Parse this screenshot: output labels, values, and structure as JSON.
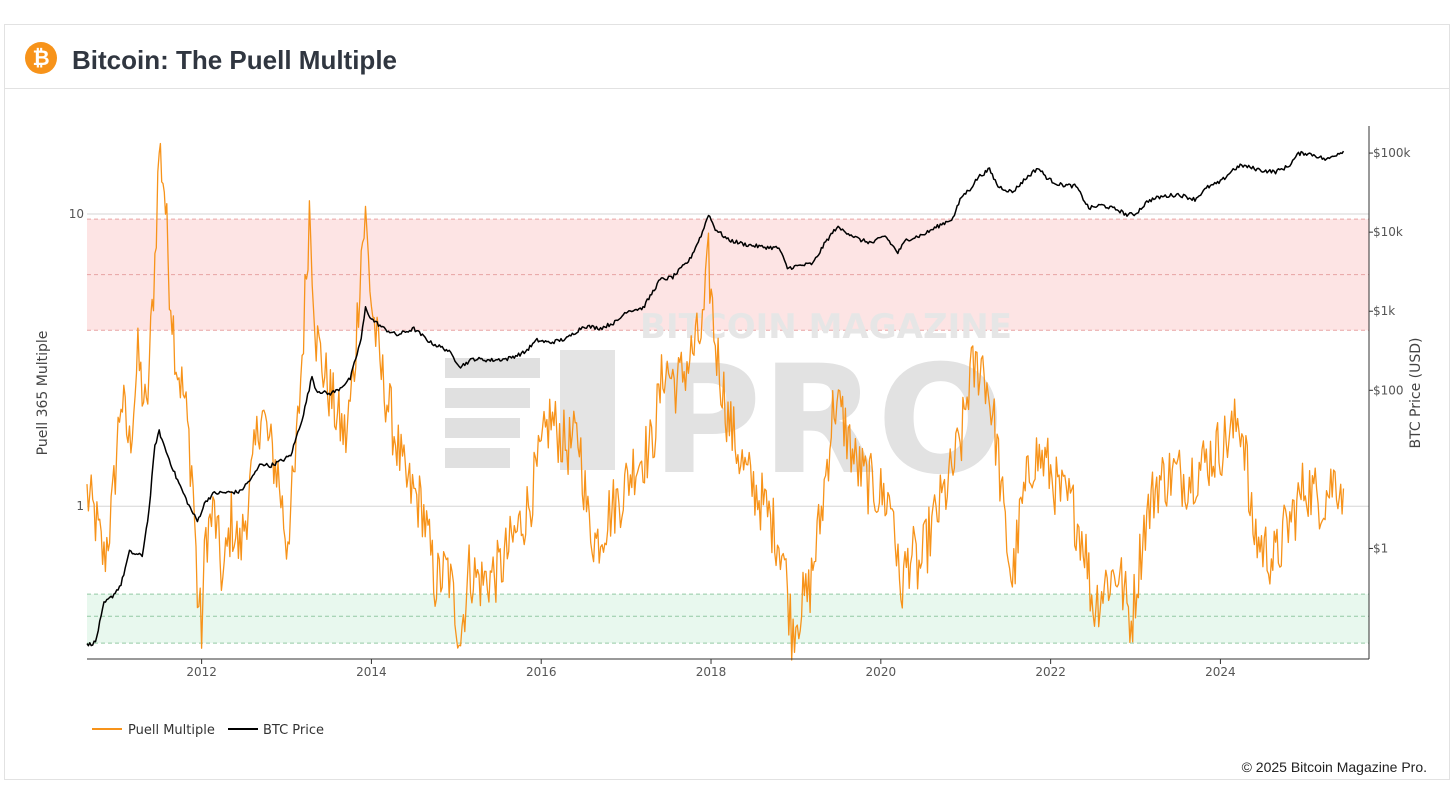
{
  "header": {
    "title": "Bitcoin: The Puell Multiple",
    "logo_icon": "bitcoin-logo-icon",
    "logo_glyph": "₿"
  },
  "watermark": {
    "line1": "BITCOIN MAGAZINE",
    "line2": "PRO"
  },
  "footer": {
    "copyright": "© 2025 Bitcoin Magazine Pro."
  },
  "chart_data": {
    "type": "line",
    "y_left": {
      "label": "Puell 365 Multiple",
      "scale": "log",
      "range": [
        0.3,
        20
      ],
      "ticks": [
        {
          "v": 1,
          "label": "1"
        },
        {
          "v": 10,
          "label": "10"
        }
      ]
    },
    "y_right": {
      "label": "BTC Price (USD)",
      "scale": "log",
      "range": [
        0.04,
        220000
      ],
      "ticks": [
        {
          "v": 1,
          "label": "$1"
        },
        {
          "v": 100,
          "label": "$100"
        },
        {
          "v": 1000,
          "label": "$1k"
        },
        {
          "v": 10000,
          "label": "$10k"
        },
        {
          "v": 100000,
          "label": "$100k"
        }
      ]
    },
    "x_axis": {
      "range": [
        2010.65,
        2025.75
      ],
      "ticks": [
        2012,
        2014,
        2016,
        2018,
        2020,
        2022,
        2024
      ]
    },
    "bands": [
      {
        "name": "overvalued",
        "from": 4,
        "to": 9.6,
        "color": "#fde4e4",
        "line_color": "#e8a3a3",
        "mid": 6.2
      },
      {
        "name": "undervalued",
        "from": 0.34,
        "to": 0.5,
        "color": "#e8f8ee",
        "line_color": "#93c9a4",
        "mid": 0.42
      }
    ],
    "grid": true,
    "legend_position": "bottom-left",
    "series": [
      {
        "name": "Puell Multiple",
        "axis": "left",
        "color": "#f7931a",
        "points": [
          [
            2010.65,
            1.1
          ],
          [
            2010.75,
            0.9
          ],
          [
            2010.85,
            0.65
          ],
          [
            2010.95,
            1.0
          ],
          [
            2011.05,
            2.4
          ],
          [
            2011.15,
            1.6
          ],
          [
            2011.25,
            3.2
          ],
          [
            2011.35,
            2.0
          ],
          [
            2011.45,
            7.0
          ],
          [
            2011.5,
            17
          ],
          [
            2011.56,
            12.5
          ],
          [
            2011.62,
            6
          ],
          [
            2011.7,
            3.2
          ],
          [
            2011.8,
            2.3
          ],
          [
            2011.9,
            1.2
          ],
          [
            2011.95,
            0.5
          ],
          [
            2012.0,
            0.38
          ],
          [
            2012.05,
            0.8
          ],
          [
            2012.15,
            0.95
          ],
          [
            2012.25,
            0.55
          ],
          [
            2012.35,
            0.9
          ],
          [
            2012.45,
            0.7
          ],
          [
            2012.6,
            1.3
          ],
          [
            2012.7,
            2.2
          ],
          [
            2012.8,
            1.6
          ],
          [
            2012.9,
            1.3
          ],
          [
            2013.0,
            0.75
          ],
          [
            2013.1,
            1.3
          ],
          [
            2013.2,
            4.0
          ],
          [
            2013.27,
            10.5
          ],
          [
            2013.35,
            3.8
          ],
          [
            2013.45,
            2.8
          ],
          [
            2013.6,
            2.0
          ],
          [
            2013.7,
            1.7
          ],
          [
            2013.8,
            3.0
          ],
          [
            2013.88,
            7.5
          ],
          [
            2013.93,
            9.6
          ],
          [
            2014.0,
            5.0
          ],
          [
            2014.1,
            3.0
          ],
          [
            2014.25,
            1.9
          ],
          [
            2014.4,
            1.2
          ],
          [
            2014.6,
            1.0
          ],
          [
            2014.75,
            0.55
          ],
          [
            2014.9,
            0.6
          ],
          [
            2015.05,
            0.36
          ],
          [
            2015.15,
            0.6
          ],
          [
            2015.3,
            0.55
          ],
          [
            2015.5,
            0.6
          ],
          [
            2015.7,
            0.8
          ],
          [
            2015.85,
            1.0
          ],
          [
            2016.0,
            1.5
          ],
          [
            2016.1,
            2.0
          ],
          [
            2016.3,
            1.6
          ],
          [
            2016.45,
            1.7
          ],
          [
            2016.55,
            0.9
          ],
          [
            2016.65,
            0.75
          ],
          [
            2016.8,
            0.95
          ],
          [
            2016.95,
            1.1
          ],
          [
            2017.1,
            1.4
          ],
          [
            2017.3,
            1.6
          ],
          [
            2017.45,
            3.0
          ],
          [
            2017.6,
            2.6
          ],
          [
            2017.75,
            3.2
          ],
          [
            2017.9,
            4.0
          ],
          [
            2017.97,
            6.8
          ],
          [
            2018.05,
            3.6
          ],
          [
            2018.2,
            2.0
          ],
          [
            2018.4,
            1.3
          ],
          [
            2018.55,
            1.1
          ],
          [
            2018.7,
            0.9
          ],
          [
            2018.85,
            0.7
          ],
          [
            2018.95,
            0.38
          ],
          [
            2019.05,
            0.45
          ],
          [
            2019.15,
            0.5
          ],
          [
            2019.3,
            0.95
          ],
          [
            2019.45,
            2.3
          ],
          [
            2019.55,
            2.0
          ],
          [
            2019.7,
            1.4
          ],
          [
            2019.85,
            1.2
          ],
          [
            2020.0,
            1.1
          ],
          [
            2020.15,
            1.0
          ],
          [
            2020.22,
            0.5
          ],
          [
            2020.35,
            0.7
          ],
          [
            2020.45,
            0.6
          ],
          [
            2020.6,
            0.85
          ],
          [
            2020.8,
            1.2
          ],
          [
            2020.95,
            1.7
          ],
          [
            2021.05,
            2.8
          ],
          [
            2021.2,
            3.1
          ],
          [
            2021.3,
            2.2
          ],
          [
            2021.37,
            1.6
          ],
          [
            2021.45,
            0.9
          ],
          [
            2021.55,
            0.55
          ],
          [
            2021.65,
            0.95
          ],
          [
            2021.8,
            1.5
          ],
          [
            2021.95,
            1.4
          ],
          [
            2022.1,
            1.1
          ],
          [
            2022.25,
            1.0
          ],
          [
            2022.4,
            0.75
          ],
          [
            2022.5,
            0.45
          ],
          [
            2022.65,
            0.55
          ],
          [
            2022.8,
            0.6
          ],
          [
            2022.95,
            0.4
          ],
          [
            2023.1,
            0.85
          ],
          [
            2023.25,
            1.2
          ],
          [
            2023.45,
            1.3
          ],
          [
            2023.6,
            1.25
          ],
          [
            2023.8,
            1.4
          ],
          [
            2024.0,
            1.6
          ],
          [
            2024.15,
            1.8
          ],
          [
            2024.22,
            2.0
          ],
          [
            2024.3,
            1.6
          ],
          [
            2024.35,
            0.9
          ],
          [
            2024.45,
            0.75
          ],
          [
            2024.55,
            0.7
          ],
          [
            2024.65,
            0.65
          ],
          [
            2024.75,
            0.8
          ],
          [
            2024.9,
            1.0
          ],
          [
            2025.0,
            1.2
          ],
          [
            2025.1,
            1.1
          ],
          [
            2025.2,
            1.05
          ],
          [
            2025.35,
            1.25
          ],
          [
            2025.45,
            1.15
          ]
        ]
      },
      {
        "name": "BTC Price",
        "axis": "right",
        "color": "#000000",
        "points": [
          [
            2010.65,
            0.06
          ],
          [
            2010.75,
            0.065
          ],
          [
            2010.85,
            0.2
          ],
          [
            2010.95,
            0.25
          ],
          [
            2011.05,
            0.35
          ],
          [
            2011.15,
            0.9
          ],
          [
            2011.3,
            0.8
          ],
          [
            2011.38,
            3
          ],
          [
            2011.45,
            20
          ],
          [
            2011.5,
            30
          ],
          [
            2011.6,
            15
          ],
          [
            2011.7,
            8
          ],
          [
            2011.85,
            3.5
          ],
          [
            2011.95,
            2.2
          ],
          [
            2012.05,
            4
          ],
          [
            2012.15,
            5
          ],
          [
            2012.3,
            5.1
          ],
          [
            2012.45,
            5.2
          ],
          [
            2012.6,
            8
          ],
          [
            2012.7,
            12
          ],
          [
            2012.8,
            11
          ],
          [
            2012.95,
            13
          ],
          [
            2013.05,
            15
          ],
          [
            2013.2,
            50
          ],
          [
            2013.3,
            150
          ],
          [
            2013.35,
            100
          ],
          [
            2013.5,
            90
          ],
          [
            2013.6,
            100
          ],
          [
            2013.75,
            140
          ],
          [
            2013.88,
            450
          ],
          [
            2013.93,
            1100
          ],
          [
            2014.0,
            800
          ],
          [
            2014.15,
            600
          ],
          [
            2014.3,
            500
          ],
          [
            2014.5,
            600
          ],
          [
            2014.7,
            400
          ],
          [
            2014.9,
            320
          ],
          [
            2015.05,
            200
          ],
          [
            2015.2,
            250
          ],
          [
            2015.4,
            240
          ],
          [
            2015.6,
            250
          ],
          [
            2015.8,
            300
          ],
          [
            2015.95,
            430
          ],
          [
            2016.1,
            400
          ],
          [
            2016.3,
            450
          ],
          [
            2016.5,
            650
          ],
          [
            2016.7,
            610
          ],
          [
            2016.9,
            750
          ],
          [
            2017.0,
            1000
          ],
          [
            2017.2,
            1100
          ],
          [
            2017.4,
            2500
          ],
          [
            2017.55,
            2700
          ],
          [
            2017.75,
            4500
          ],
          [
            2017.9,
            10000
          ],
          [
            2017.97,
            17000
          ],
          [
            2018.05,
            11000
          ],
          [
            2018.2,
            8000
          ],
          [
            2018.4,
            7000
          ],
          [
            2018.6,
            6500
          ],
          [
            2018.8,
            6300
          ],
          [
            2018.9,
            3500
          ],
          [
            2019.0,
            3700
          ],
          [
            2019.2,
            4000
          ],
          [
            2019.35,
            7500
          ],
          [
            2019.48,
            11500
          ],
          [
            2019.6,
            10000
          ],
          [
            2019.75,
            8000
          ],
          [
            2019.9,
            7300
          ],
          [
            2020.05,
            9000
          ],
          [
            2020.2,
            5500
          ],
          [
            2020.3,
            8000
          ],
          [
            2020.5,
            9300
          ],
          [
            2020.65,
            11500
          ],
          [
            2020.85,
            15000
          ],
          [
            2020.95,
            28000
          ],
          [
            2021.05,
            35000
          ],
          [
            2021.15,
            50000
          ],
          [
            2021.28,
            62000
          ],
          [
            2021.38,
            38000
          ],
          [
            2021.55,
            32000
          ],
          [
            2021.7,
            47000
          ],
          [
            2021.85,
            65000
          ],
          [
            2021.97,
            47000
          ],
          [
            2022.1,
            40000
          ],
          [
            2022.3,
            38000
          ],
          [
            2022.45,
            20000
          ],
          [
            2022.6,
            22000
          ],
          [
            2022.8,
            19000
          ],
          [
            2022.9,
            16500
          ],
          [
            2023.0,
            17000
          ],
          [
            2023.15,
            25000
          ],
          [
            2023.3,
            28000
          ],
          [
            2023.5,
            30000
          ],
          [
            2023.7,
            26000
          ],
          [
            2023.85,
            37000
          ],
          [
            2024.0,
            43000
          ],
          [
            2024.15,
            62000
          ],
          [
            2024.25,
            70000
          ],
          [
            2024.5,
            60000
          ],
          [
            2024.65,
            58000
          ],
          [
            2024.8,
            68000
          ],
          [
            2024.92,
            98000
          ],
          [
            2025.0,
            100000
          ],
          [
            2025.1,
            95000
          ],
          [
            2025.25,
            82000
          ],
          [
            2025.35,
            95000
          ],
          [
            2025.45,
            106000
          ]
        ]
      }
    ]
  }
}
